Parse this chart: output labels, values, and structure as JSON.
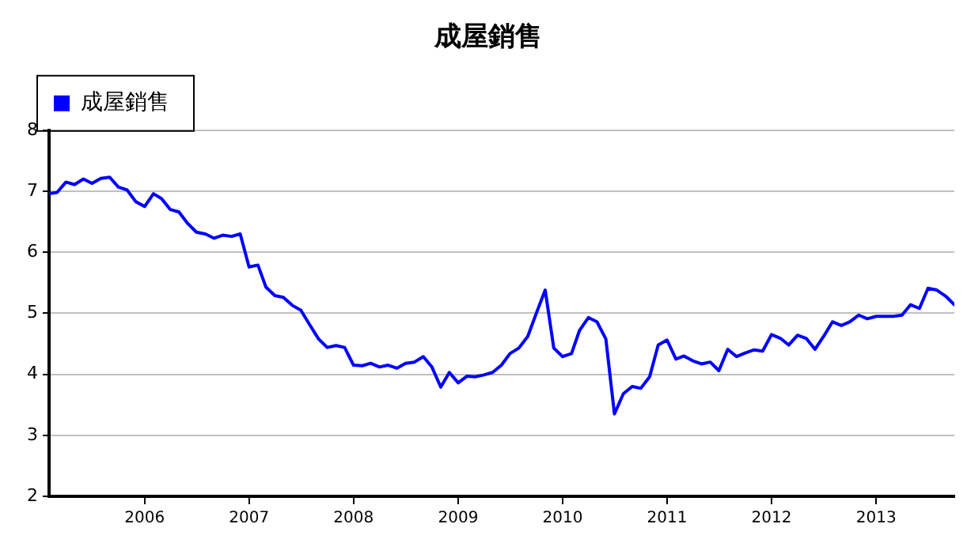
{
  "chart_data": {
    "type": "line",
    "title": "成屋銷售",
    "legend": "top left",
    "grid": "y",
    "marker": "none",
    "line_style": "solid",
    "x": [
      "2005-02",
      "2005-03",
      "2005-04",
      "2005-05",
      "2005-06",
      "2005-07",
      "2005-08",
      "2005-09",
      "2005-10",
      "2005-11",
      "2005-12",
      "2006-01",
      "2006-02",
      "2006-03",
      "2006-04",
      "2006-05",
      "2006-06",
      "2006-07",
      "2006-08",
      "2006-09",
      "2006-10",
      "2006-11",
      "2006-12",
      "2007-01",
      "2007-02",
      "2007-03",
      "2007-04",
      "2007-05",
      "2007-06",
      "2007-07",
      "2007-08",
      "2007-09",
      "2007-10",
      "2007-11",
      "2007-12",
      "2008-01",
      "2008-02",
      "2008-03",
      "2008-04",
      "2008-05",
      "2008-06",
      "2008-07",
      "2008-08",
      "2008-09",
      "2008-10",
      "2008-11",
      "2008-12",
      "2009-01",
      "2009-02",
      "2009-03",
      "2009-04",
      "2009-05",
      "2009-06",
      "2009-07",
      "2009-08",
      "2009-09",
      "2009-10",
      "2009-11",
      "2009-12",
      "2010-01",
      "2010-02",
      "2010-03",
      "2010-04",
      "2010-05",
      "2010-06",
      "2010-07",
      "2010-08",
      "2010-09",
      "2010-10",
      "2010-11",
      "2010-12",
      "2011-01",
      "2011-02",
      "2011-03",
      "2011-04",
      "2011-05",
      "2011-06",
      "2011-07",
      "2011-08",
      "2011-09",
      "2011-10",
      "2011-11",
      "2011-12",
      "2012-01",
      "2012-02",
      "2012-03",
      "2012-04",
      "2012-05",
      "2012-06",
      "2012-07",
      "2012-08",
      "2012-09",
      "2012-10",
      "2012-11",
      "2012-12",
      "2013-01",
      "2013-02",
      "2013-03",
      "2013-04",
      "2013-05",
      "2013-06",
      "2013-07",
      "2013-08",
      "2013-09",
      "2013-10"
    ],
    "series": [
      {
        "name": "成屋銷售",
        "color": "#0000ff",
        "values": [
          6.96,
          6.98,
          7.15,
          7.11,
          7.2,
          7.13,
          7.21,
          7.23,
          7.07,
          7.02,
          6.83,
          6.75,
          6.96,
          6.88,
          6.7,
          6.66,
          6.47,
          6.33,
          6.3,
          6.23,
          6.28,
          6.26,
          6.3,
          5.76,
          5.79,
          5.43,
          5.29,
          5.26,
          5.13,
          5.05,
          4.81,
          4.58,
          4.44,
          4.47,
          4.44,
          4.15,
          4.14,
          4.18,
          4.12,
          4.15,
          4.1,
          4.18,
          4.2,
          4.29,
          4.12,
          3.79,
          4.03,
          3.86,
          3.97,
          3.96,
          3.99,
          4.03,
          4.15,
          4.34,
          4.43,
          4.62,
          5.0,
          5.38,
          4.43,
          4.29,
          4.34,
          4.72,
          4.93,
          4.86,
          4.58,
          3.35,
          3.68,
          3.8,
          3.77,
          3.96,
          4.48,
          4.56,
          4.25,
          4.3,
          4.22,
          4.17,
          4.2,
          4.06,
          4.41,
          4.29,
          4.35,
          4.4,
          4.38,
          4.65,
          4.59,
          4.48,
          4.64,
          4.59,
          4.41,
          4.62,
          4.86,
          4.8,
          4.86,
          4.97,
          4.91,
          4.95,
          4.95,
          4.95,
          4.97,
          5.14,
          5.08,
          5.41,
          5.38,
          5.28,
          5.14
        ]
      }
    ],
    "xlim": [
      "2005-02",
      "2013-10"
    ],
    "xticks": [
      "2006",
      "2007",
      "2008",
      "2009",
      "2010",
      "2011",
      "2012",
      "2013"
    ],
    "ylim": [
      2,
      8
    ],
    "yticks": [
      2,
      3,
      4,
      5,
      6,
      7,
      8
    ]
  }
}
